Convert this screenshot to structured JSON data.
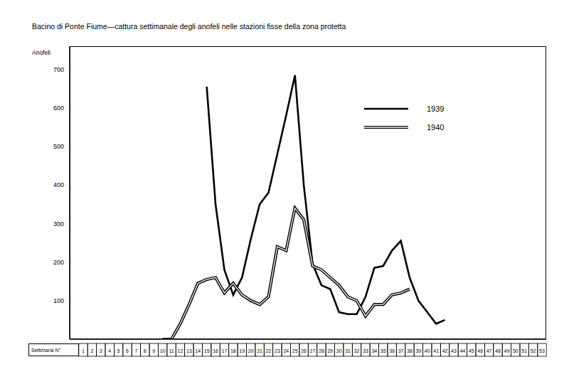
{
  "chart_data": {
    "type": "line",
    "title": "Bacino di Ponte Fiume—cattura settimanale degli anofeli nelle stazioni fisse della zona protetta",
    "x_label": "Settimana N°",
    "y_label": "Anofeli",
    "categories": [
      "1",
      "2",
      "3",
      "4",
      "5",
      "6",
      "7",
      "8",
      "9",
      "10",
      "11",
      "12",
      "13",
      "14",
      "15",
      "16",
      "17",
      "18",
      "19",
      "20",
      "21",
      "22",
      "23",
      "24",
      "25",
      "26",
      "27",
      "28",
      "29",
      "30",
      "31",
      "32",
      "33",
      "34",
      "35",
      "36",
      "37",
      "38",
      "39",
      "40",
      "41",
      "42",
      "43",
      "44",
      "45",
      "46",
      "47",
      "48",
      "49",
      "50",
      "51",
      "52",
      "53"
    ],
    "series": [
      {
        "name": "1939",
        "color": "#000000",
        "line_style": "solid",
        "values": [
          null,
          null,
          null,
          null,
          null,
          null,
          null,
          null,
          null,
          null,
          null,
          null,
          null,
          null,
          655,
          350,
          180,
          115,
          160,
          260,
          350,
          380,
          480,
          580,
          685,
          400,
          195,
          140,
          130,
          70,
          65,
          65,
          110,
          185,
          190,
          230,
          255,
          160,
          100,
          70,
          40,
          50,
          null,
          null,
          null,
          null,
          null,
          null,
          null,
          null,
          null,
          null,
          null
        ]
      },
      {
        "name": "1940",
        "color": "#000000",
        "line_style": "double",
        "values": [
          null,
          null,
          null,
          null,
          null,
          null,
          null,
          null,
          null,
          0,
          0,
          40,
          90,
          145,
          155,
          160,
          120,
          145,
          115,
          100,
          90,
          110,
          240,
          230,
          340,
          310,
          190,
          180,
          160,
          140,
          110,
          100,
          60,
          90,
          90,
          115,
          120,
          130,
          null,
          null,
          null,
          null,
          null,
          null,
          null,
          null,
          null,
          null,
          null,
          null,
          null,
          null,
          null
        ]
      }
    ],
    "ylim": [
      0,
      760
    ],
    "yticks": [
      100,
      200,
      300,
      400,
      500,
      600,
      700
    ],
    "legend": "upper right",
    "grid": false
  }
}
